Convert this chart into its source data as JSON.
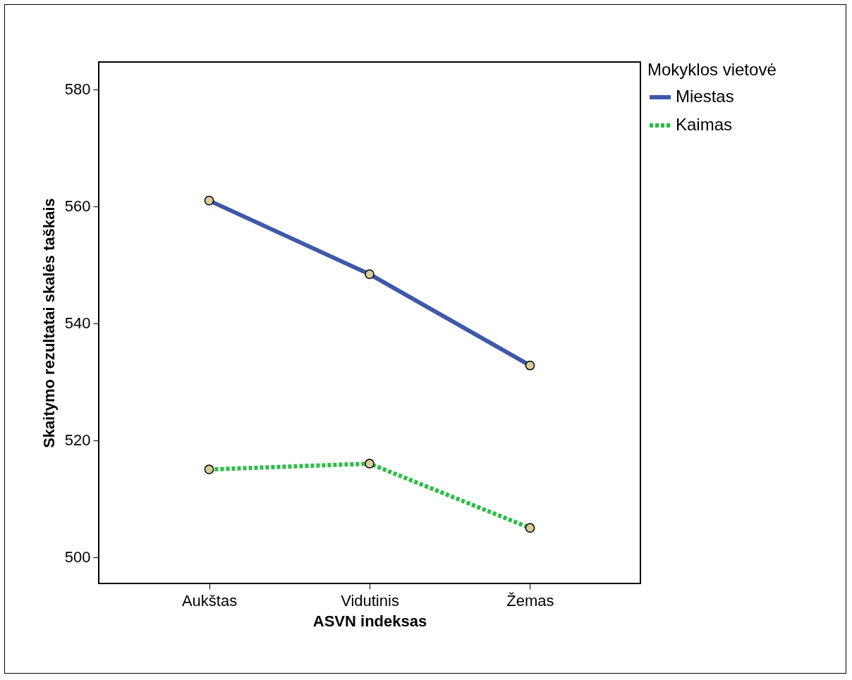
{
  "chart_data": {
    "type": "line",
    "xlabel": "ASVN indeksas",
    "ylabel": "Skaitymo rezultatai skalės taškais",
    "legend_title": "Mokyklos vietovė",
    "categories": [
      "Aukštas",
      "Vidutinis",
      "Žemas"
    ],
    "series": [
      {
        "name": "Miestas",
        "color": "#3f58a8",
        "line_style": "solid",
        "values": [
          561,
          548.4,
          532.8
        ]
      },
      {
        "name": "Kaimas",
        "color": "#2dbd46",
        "line_style": "dotted",
        "values": [
          515,
          516,
          505
        ]
      }
    ],
    "ylim": [
      495.5,
      584.7
    ],
    "yticks": [
      500,
      520,
      540,
      560,
      580
    ],
    "grid": false,
    "legend": "top right",
    "marker": "circle"
  }
}
